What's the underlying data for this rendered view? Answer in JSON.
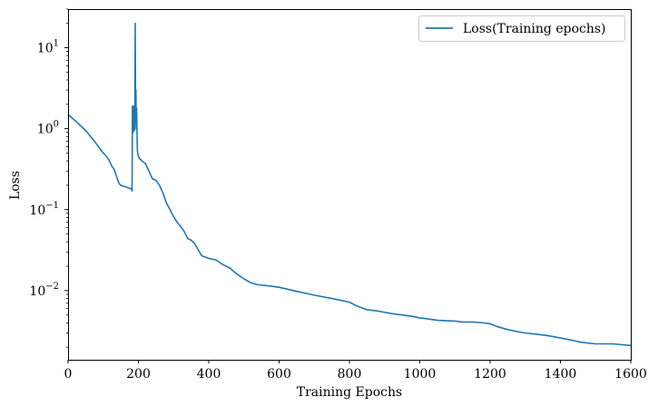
{
  "chart_data": {
    "type": "line",
    "xlabel": "Training Epochs",
    "ylabel": "Loss",
    "xlim": [
      0,
      1600
    ],
    "ylim": [
      0.0014,
      30
    ],
    "yscale": "log",
    "grid": false,
    "legend_position": "top-right",
    "x_ticks": [
      0,
      200,
      400,
      600,
      800,
      1000,
      1200,
      1400,
      1600
    ],
    "x_tick_labels": [
      "0",
      "200",
      "400",
      "600",
      "800",
      "1000",
      "1200",
      "1400",
      "1600"
    ],
    "y_ticks": [
      0.01,
      0.1,
      1,
      10
    ],
    "y_tick_base": "10",
    "y_tick_exponents": [
      "−2",
      "−1",
      "0",
      "1"
    ],
    "color": "#1f77b4",
    "series": [
      {
        "name": "Loss(Training epochs)",
        "x": [
          0,
          25,
          50,
          75,
          100,
          105,
          115,
          120,
          125,
          130,
          135,
          140,
          145,
          150,
          165,
          180,
          182,
          183,
          185,
          187,
          189,
          190,
          191,
          192,
          193,
          194,
          195,
          196,
          197,
          198,
          199,
          200,
          205,
          210,
          220,
          230,
          240,
          250,
          260,
          270,
          280,
          290,
          300,
          310,
          320,
          330,
          340,
          350,
          360,
          370,
          380,
          400,
          420,
          440,
          460,
          480,
          500,
          520,
          540,
          560,
          600,
          650,
          700,
          750,
          800,
          820,
          850,
          880,
          900,
          920,
          950,
          980,
          1000,
          1020,
          1050,
          1100,
          1120,
          1150,
          1180,
          1200,
          1220,
          1250,
          1280,
          1300,
          1330,
          1360,
          1380,
          1400,
          1420,
          1440,
          1460,
          1500,
          1550,
          1600
        ],
        "y": [
          1.5,
          1.2,
          0.95,
          0.7,
          0.5,
          0.48,
          0.42,
          0.38,
          0.34,
          0.32,
          0.28,
          0.24,
          0.21,
          0.2,
          0.19,
          0.18,
          0.17,
          1.9,
          0.9,
          1.9,
          0.95,
          1.5,
          20.0,
          1.2,
          3.0,
          1.0,
          1.8,
          0.9,
          0.55,
          0.5,
          0.48,
          0.45,
          0.42,
          0.4,
          0.37,
          0.3,
          0.24,
          0.23,
          0.2,
          0.16,
          0.12,
          0.1,
          0.082,
          0.07,
          0.062,
          0.054,
          0.044,
          0.042,
          0.038,
          0.032,
          0.027,
          0.025,
          0.024,
          0.021,
          0.019,
          0.016,
          0.014,
          0.0125,
          0.0118,
          0.0116,
          0.011,
          0.0098,
          0.0088,
          0.008,
          0.0072,
          0.0065,
          0.0058,
          0.0056,
          0.0054,
          0.0052,
          0.005,
          0.0048,
          0.0046,
          0.0045,
          0.0043,
          0.0042,
          0.0041,
          0.0041,
          0.004,
          0.0039,
          0.0036,
          0.0033,
          0.0031,
          0.003,
          0.0029,
          0.0028,
          0.0027,
          0.0026,
          0.0025,
          0.0024,
          0.0023,
          0.0022,
          0.0022,
          0.0021
        ]
      }
    ]
  }
}
